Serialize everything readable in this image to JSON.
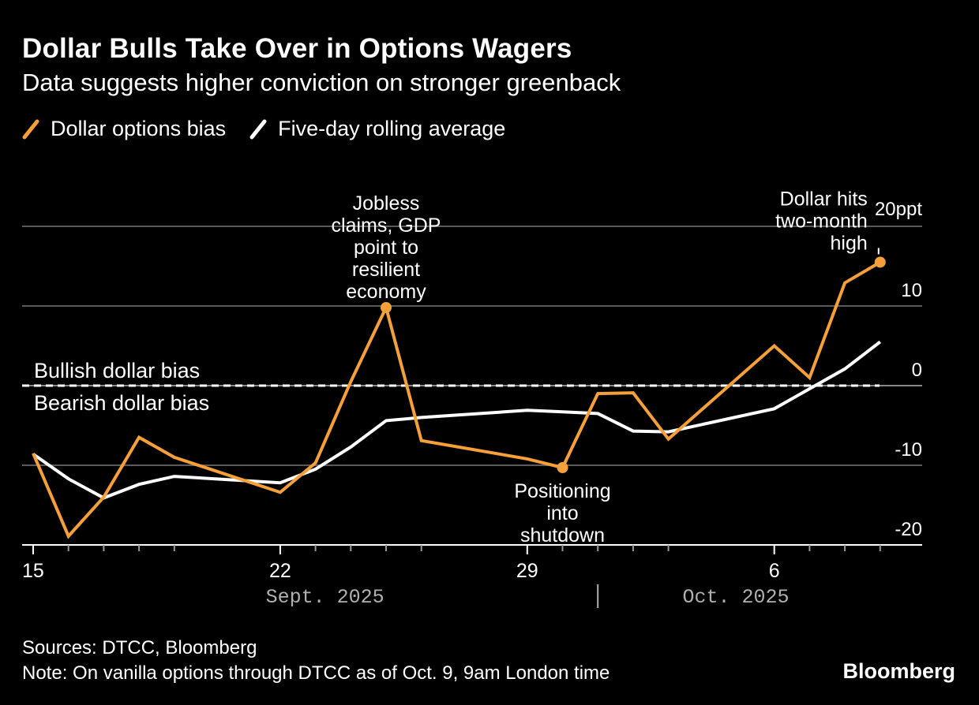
{
  "title": "Dollar Bulls Take Over in Options Wagers",
  "subtitle": "Data suggests higher conviction on stronger greenback",
  "legend": [
    {
      "label": "Dollar options bias",
      "color": "#F6A03A"
    },
    {
      "label": "Five-day rolling average",
      "color": "#FFFFFF"
    }
  ],
  "sources": "Sources: DTCC, Bloomberg",
  "note": "Note: On vanilla options through DTCC as of Oct. 9, 9am London time",
  "logo": "Bloomberg",
  "chart_data": {
    "type": "line",
    "x_start": "2025-09-15",
    "ylim": [
      -20,
      20
    ],
    "y_ticks": [
      {
        "value": 20,
        "label": "20ppt"
      },
      {
        "value": 10,
        "label": "10"
      },
      {
        "value": 0,
        "label": "0"
      },
      {
        "value": -10,
        "label": "-10"
      },
      {
        "value": -20,
        "label": "-20"
      }
    ],
    "x_ticks": [
      {
        "date": "2025-09-15",
        "label": "15"
      },
      {
        "date": "2025-09-22",
        "label": "22"
      },
      {
        "date": "2025-09-29",
        "label": "29"
      },
      {
        "date": "2025-10-06",
        "label": "6"
      }
    ],
    "month_labels": [
      {
        "label": "Sept. 2025"
      },
      {
        "label": "Oct. 2025"
      }
    ],
    "month_separator_date": "2025-10-01",
    "grid": true,
    "zero_line": "dashed",
    "zone_labels": {
      "above": "Bullish dollar bias",
      "below": "Bearish dollar bias"
    },
    "series": [
      {
        "name": "Dollar options bias",
        "color": "#F6A03A",
        "points": [
          {
            "x": "2025-09-15",
            "y": -8.5
          },
          {
            "x": "2025-09-16",
            "y": -18.9
          },
          {
            "x": "2025-09-17",
            "y": -14.0
          },
          {
            "x": "2025-09-18",
            "y": -6.5
          },
          {
            "x": "2025-09-19",
            "y": -9.0
          },
          {
            "x": "2025-09-22",
            "y": -13.4
          },
          {
            "x": "2025-09-23",
            "y": -9.7
          },
          {
            "x": "2025-09-24",
            "y": 0.5
          },
          {
            "x": "2025-09-25",
            "y": 9.8
          },
          {
            "x": "2025-09-26",
            "y": -6.9
          },
          {
            "x": "2025-09-29",
            "y": -9.2
          },
          {
            "x": "2025-09-30",
            "y": -10.3
          },
          {
            "x": "2025-10-01",
            "y": -1.0
          },
          {
            "x": "2025-10-02",
            "y": -0.9
          },
          {
            "x": "2025-10-03",
            "y": -6.7
          },
          {
            "x": "2025-10-06",
            "y": 5.0
          },
          {
            "x": "2025-10-07",
            "y": 1.0
          },
          {
            "x": "2025-10-08",
            "y": 12.9
          },
          {
            "x": "2025-10-09",
            "y": 15.5
          }
        ]
      },
      {
        "name": "Five-day rolling average",
        "color": "#FFFFFF",
        "points": [
          {
            "x": "2025-09-15",
            "y": -8.6
          },
          {
            "x": "2025-09-16",
            "y": -11.7
          },
          {
            "x": "2025-09-17",
            "y": -14.1
          },
          {
            "x": "2025-09-18",
            "y": -12.4
          },
          {
            "x": "2025-09-19",
            "y": -11.4
          },
          {
            "x": "2025-09-22",
            "y": -12.2
          },
          {
            "x": "2025-09-23",
            "y": -10.5
          },
          {
            "x": "2025-09-24",
            "y": -7.7
          },
          {
            "x": "2025-09-25",
            "y": -4.4
          },
          {
            "x": "2025-09-26",
            "y": -4.0
          },
          {
            "x": "2025-09-29",
            "y": -3.1
          },
          {
            "x": "2025-09-30",
            "y": -3.3
          },
          {
            "x": "2025-10-01",
            "y": -3.5
          },
          {
            "x": "2025-10-02",
            "y": -5.7
          },
          {
            "x": "2025-10-03",
            "y": -5.8
          },
          {
            "x": "2025-10-06",
            "y": -2.9
          },
          {
            "x": "2025-10-07",
            "y": -0.4
          },
          {
            "x": "2025-10-08",
            "y": 2.1
          },
          {
            "x": "2025-10-09",
            "y": 5.5
          }
        ]
      }
    ],
    "annotations": [
      {
        "x": "2025-09-25",
        "y": 9.8,
        "lines": [
          "Jobless",
          "claims, GDP",
          "point to",
          "resilient",
          "economy"
        ]
      },
      {
        "x": "2025-09-30",
        "y": -10.3,
        "lines": [
          "Positioning",
          "into",
          "shutdown"
        ]
      },
      {
        "x": "2025-10-09",
        "y": 15.5,
        "lines": [
          "Dollar hits",
          "two-month",
          "high"
        ]
      }
    ]
  }
}
